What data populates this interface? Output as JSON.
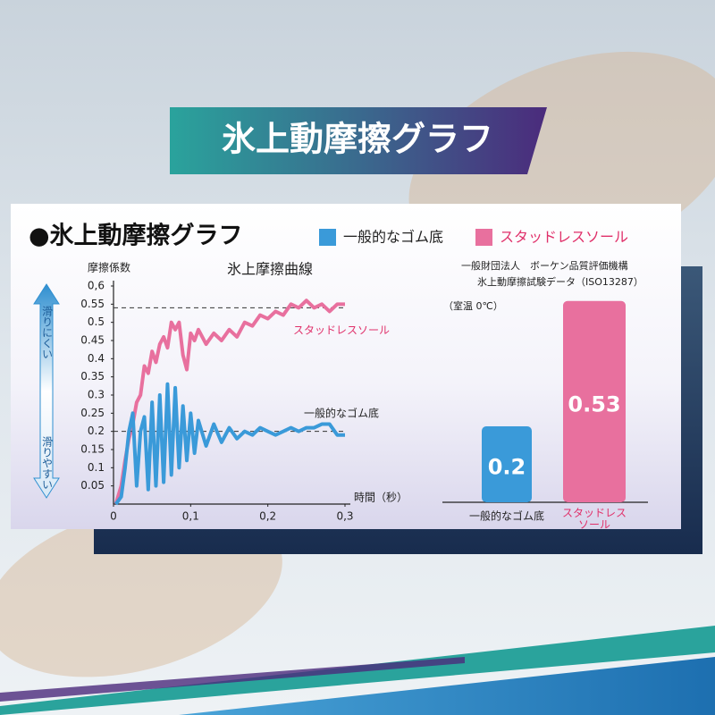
{
  "banner": {
    "title": "氷上動摩擦グラフ"
  },
  "card": {
    "title": "●氷上動摩擦グラフ"
  },
  "chart_data": [
    {
      "type": "line",
      "title": "氷上摩擦曲線",
      "y_label": "摩擦係数",
      "x_label": "時間（秒）",
      "side_arrow": {
        "top": "滑りにくい",
        "bottom": "滑りやすい"
      },
      "x": [
        0.003,
        0.01,
        0.015,
        0.02,
        0.025,
        0.03,
        0.035,
        0.04,
        0.045,
        0.05,
        0.055,
        0.06,
        0.065,
        0.07,
        0.075,
        0.08,
        0.085,
        0.09,
        0.095,
        0.1,
        0.105,
        0.11,
        0.12,
        0.13,
        0.14,
        0.15,
        0.16,
        0.17,
        0.18,
        0.19,
        0.2,
        0.21,
        0.22,
        0.23,
        0.24,
        0.25,
        0.26,
        0.27,
        0.28,
        0.29,
        0.3
      ],
      "series": [
        {
          "name": "スタッドレスソール",
          "color": "#e8709e",
          "reference": 0.54,
          "values": [
            0,
            0.05,
            0.12,
            0.18,
            0.22,
            0.28,
            0.3,
            0.38,
            0.36,
            0.42,
            0.39,
            0.44,
            0.46,
            0.43,
            0.5,
            0.48,
            0.5,
            0.41,
            0.37,
            0.47,
            0.45,
            0.48,
            0.44,
            0.47,
            0.45,
            0.48,
            0.46,
            0.5,
            0.49,
            0.52,
            0.51,
            0.53,
            0.52,
            0.55,
            0.54,
            0.56,
            0.54,
            0.55,
            0.53,
            0.55,
            0.55
          ]
        },
        {
          "name": "一般的なゴム底",
          "color": "#3a9ad9",
          "reference": 0.2,
          "values": [
            0,
            0.02,
            0.1,
            0.2,
            0.25,
            0.05,
            0.2,
            0.24,
            0.04,
            0.28,
            0.05,
            0.3,
            0.06,
            0.33,
            0.08,
            0.32,
            0.1,
            0.27,
            0.12,
            0.25,
            0.14,
            0.23,
            0.16,
            0.22,
            0.17,
            0.21,
            0.18,
            0.2,
            0.19,
            0.21,
            0.2,
            0.19,
            0.2,
            0.21,
            0.2,
            0.21,
            0.21,
            0.22,
            0.22,
            0.19,
            0.19
          ]
        }
      ],
      "xlim": [
        0,
        0.3
      ],
      "xticks": [
        0,
        {
          "value": 0.1,
          "label": "0,1"
        },
        {
          "value": 0.2,
          "label": "0,2"
        },
        {
          "value": 0.3,
          "label": "0,3"
        }
      ],
      "ylim": [
        0,
        0.6
      ],
      "yticks": [
        0.05,
        0.1,
        0.15,
        0.2,
        0.25,
        0.3,
        0.35,
        0.4,
        0.45,
        0.5,
        0.55,
        {
          "value": 0.6,
          "label": "0,6"
        }
      ]
    },
    {
      "type": "bar",
      "annotations": [
        "一般財団法人　ボーケン品質評価機構",
        "氷上動摩擦試験データ（ISO13287）",
        "（室温 0℃）"
      ],
      "categories": [
        "一般的なゴム底",
        "スタッドレス\nソール"
      ],
      "values": [
        0.2,
        0.53
      ],
      "colors": [
        "#3a9ad9",
        "#e8709e"
      ],
      "ylim": [
        0,
        0.6
      ]
    }
  ]
}
